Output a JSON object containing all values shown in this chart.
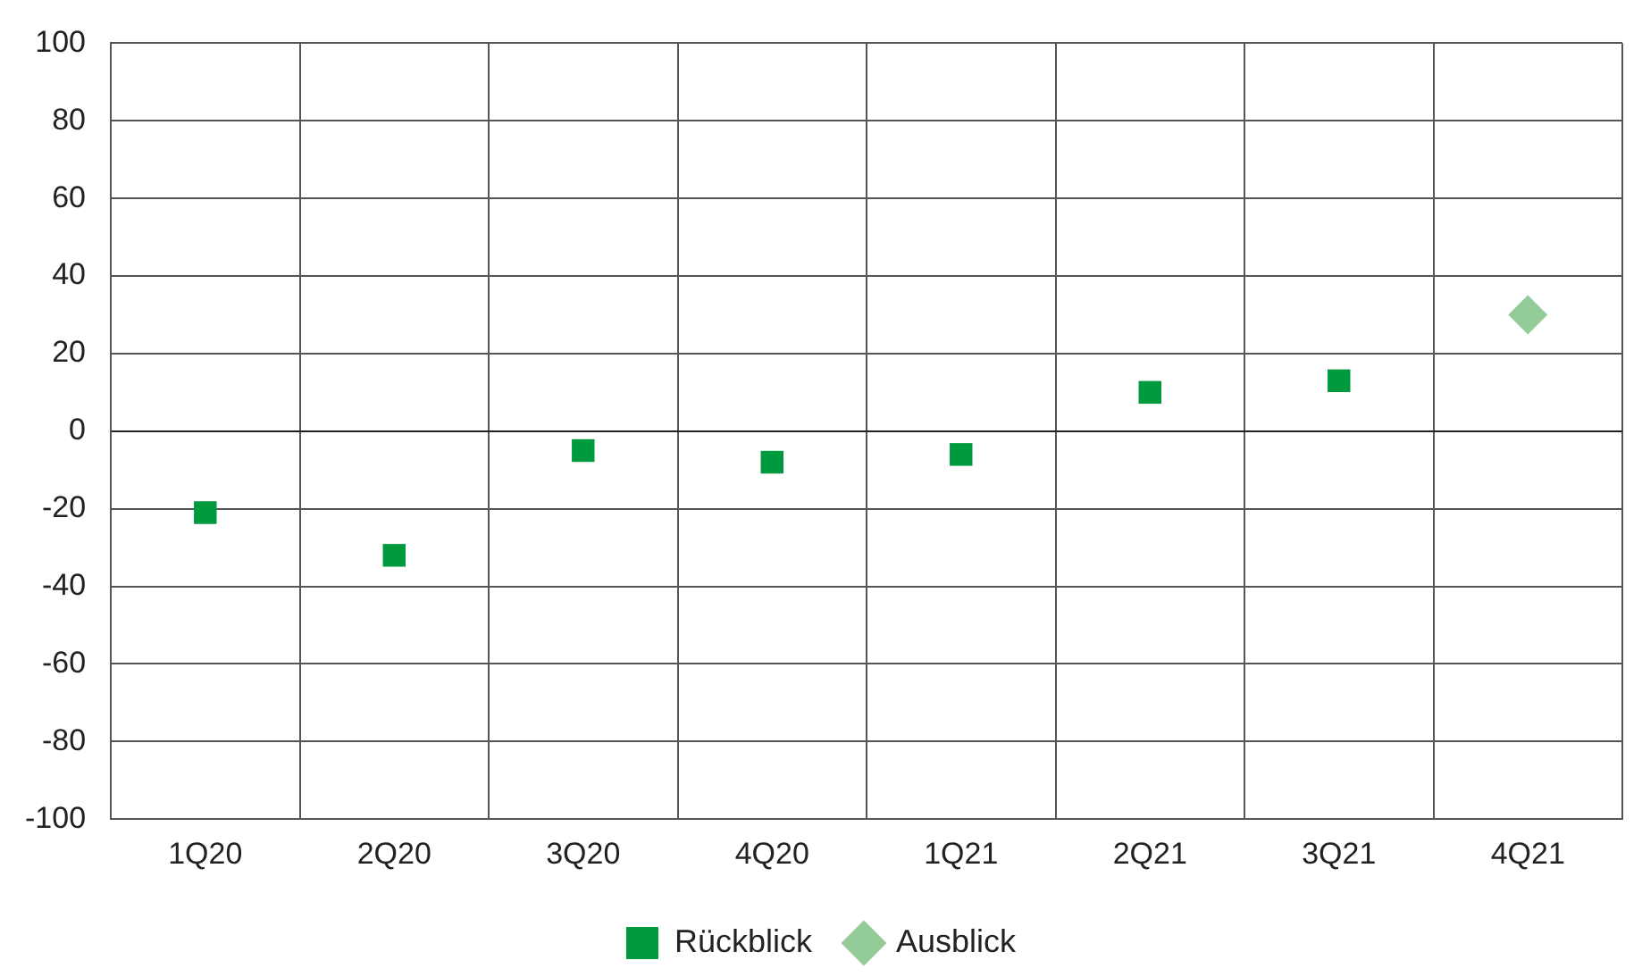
{
  "chart_data": {
    "type": "scatter",
    "categories": [
      "1Q20",
      "2Q20",
      "3Q20",
      "4Q20",
      "1Q21",
      "2Q21",
      "3Q21",
      "4Q21"
    ],
    "series": [
      {
        "name": "Rückblick",
        "color": "#009a3e",
        "marker": "square",
        "values": [
          -21,
          -32,
          -5,
          -8,
          -6,
          10,
          13,
          null
        ]
      },
      {
        "name": "Ausblick",
        "color": "#93cc99",
        "marker": "diamond",
        "values": [
          null,
          null,
          null,
          null,
          null,
          null,
          null,
          30
        ]
      }
    ],
    "ylim": [
      -100,
      100
    ],
    "yticks": [
      -100,
      -80,
      -60,
      -40,
      -20,
      0,
      20,
      40,
      60,
      80,
      100
    ],
    "grid": true,
    "legend": "bottom"
  }
}
